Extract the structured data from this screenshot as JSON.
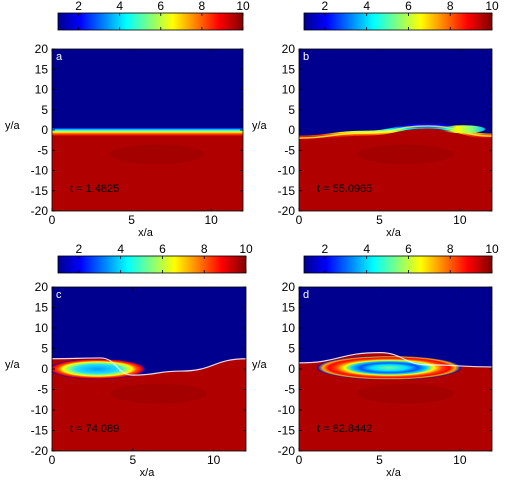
{
  "colormap": [
    "#00008f",
    "#0000ff",
    "#00ffff",
    "#ffff00",
    "#ff0000",
    "#800000"
  ],
  "colorbar_ticks": [
    "2",
    "4",
    "6",
    "8",
    "10"
  ],
  "colorbar_range": [
    1,
    10
  ],
  "ytick_labels": [
    "20",
    "15",
    "10",
    "5",
    "0",
    "-5",
    "-10",
    "-15",
    "-20"
  ],
  "xtick_labels": [
    "0",
    "5",
    "10"
  ],
  "chart_data": [
    {
      "type": "heatmap",
      "panel_label": "a",
      "time_label": "t = 1.4825",
      "xlabel": "x/a",
      "ylabel": "y/a",
      "xlim": [
        0,
        12
      ],
      "ylim": [
        -20,
        20
      ],
      "xticks": [
        0,
        5,
        10
      ],
      "yticks": [
        20,
        15,
        10,
        5,
        0,
        -5,
        -10,
        -15,
        -20
      ],
      "upper_value": 1,
      "lower_value": 10,
      "interface": [
        [
          0,
          -0.5
        ],
        [
          12,
          -0.5
        ]
      ]
    },
    {
      "type": "heatmap",
      "panel_label": "b",
      "time_label": "t = 55.0965",
      "xlabel": "x/a",
      "ylabel": "y/a",
      "xlim": [
        0,
        12
      ],
      "ylim": [
        -20,
        20
      ],
      "xticks": [
        0,
        5,
        10
      ],
      "yticks": [
        20,
        15,
        10,
        5,
        0,
        -5,
        -10,
        -15,
        -20
      ],
      "upper_value": 1,
      "lower_value": 10,
      "interface": [
        [
          0,
          -2
        ],
        [
          4,
          -0.8
        ],
        [
          8,
          1
        ],
        [
          12,
          -1.5
        ]
      ]
    },
    {
      "type": "heatmap",
      "panel_label": "c",
      "time_label": "t = 74.089",
      "xlabel": "x/a",
      "ylabel": "y/a",
      "xlim": [
        0,
        12
      ],
      "ylim": [
        -20,
        20
      ],
      "xticks": [
        0,
        5,
        10
      ],
      "yticks": [
        20,
        15,
        10,
        5,
        0,
        -5,
        -10,
        -15,
        -20
      ],
      "upper_value": 1,
      "lower_value": 10,
      "interface": [
        [
          0,
          2.5
        ],
        [
          3,
          2.7
        ],
        [
          5,
          -1.5
        ],
        [
          8,
          -0.5
        ],
        [
          12,
          2.5
        ]
      ]
    },
    {
      "type": "heatmap",
      "panel_label": "d",
      "time_label": "t = 82.8442",
      "xlabel": "x/a",
      "ylabel": "y/a",
      "xlim": [
        0,
        12
      ],
      "ylim": [
        -20,
        20
      ],
      "xticks": [
        0,
        5,
        10
      ],
      "yticks": [
        20,
        15,
        10,
        5,
        0,
        -5,
        -10,
        -15,
        -20
      ],
      "upper_value": 1,
      "lower_value": 10,
      "interface": [
        [
          0,
          1.5
        ],
        [
          5,
          4
        ],
        [
          8,
          1
        ],
        [
          12,
          0.5
        ]
      ]
    }
  ]
}
